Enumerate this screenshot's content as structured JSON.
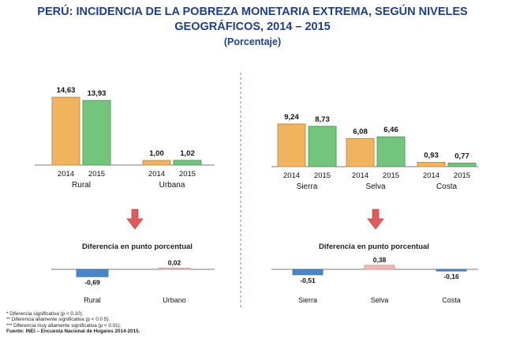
{
  "title": {
    "line1": "PERÚ: INCIDENCIA DE LA POBREZA MONETARIA EXTREMA, SEGÚN NIVELES",
    "line2": "GEOGRÁFICOS, 2014 – 2015",
    "line3": "(Porcentaje)"
  },
  "colors": {
    "y2014": "#f0b35e",
    "y2015": "#73c47c",
    "negative": "#4a86c8",
    "positive": "#f2b8b8",
    "arrow": "#e2595a",
    "divider": "#c0705a"
  },
  "chart_data": [
    {
      "type": "bar",
      "categories": [
        "Rural",
        "Urbana"
      ],
      "series": [
        {
          "name": "2014",
          "values": [
            14.63,
            1.0
          ]
        },
        {
          "name": "2015",
          "values": [
            13.93,
            1.02
          ]
        }
      ],
      "value_labels": [
        [
          "14,63",
          "13,93"
        ],
        [
          "1,00",
          "1,02"
        ]
      ],
      "ylim": [
        0,
        16
      ]
    },
    {
      "type": "bar",
      "categories": [
        "Sierra",
        "Selva",
        "Costa"
      ],
      "series": [
        {
          "name": "2014",
          "values": [
            9.24,
            6.08,
            0.93
          ]
        },
        {
          "name": "2015",
          "values": [
            8.73,
            6.46,
            0.77
          ]
        }
      ],
      "value_labels": [
        [
          "9,24",
          "8,73"
        ],
        [
          "6,08",
          "6,46"
        ],
        [
          "0,93",
          "0,77"
        ]
      ],
      "ylim": [
        0,
        11
      ]
    },
    {
      "type": "bar",
      "title": "Diferencia en punto porcentual",
      "categories": [
        "Rural",
        "Urbano"
      ],
      "values": [
        -0.69,
        0.02
      ],
      "value_labels": [
        "-0,69",
        "0,02"
      ]
    },
    {
      "type": "bar",
      "title": "Diferencia en punto porcentual",
      "categories": [
        "Sierra",
        "Selva",
        "Costa"
      ],
      "values": [
        -0.51,
        0.38,
        -0.16
      ],
      "value_labels": [
        "-0,51",
        "0,38",
        "-0,16"
      ]
    }
  ],
  "footnotes": [
    "* Diferencia significativa (p  <  0.10).",
    "** Diferencia altamente significativa (p < 0.0 5).",
    "*** Diferencia muy altamente significativa (p < 0.01).",
    "Fuente: INEI – Encuesta Nacional de Hogares 2014-2015."
  ]
}
